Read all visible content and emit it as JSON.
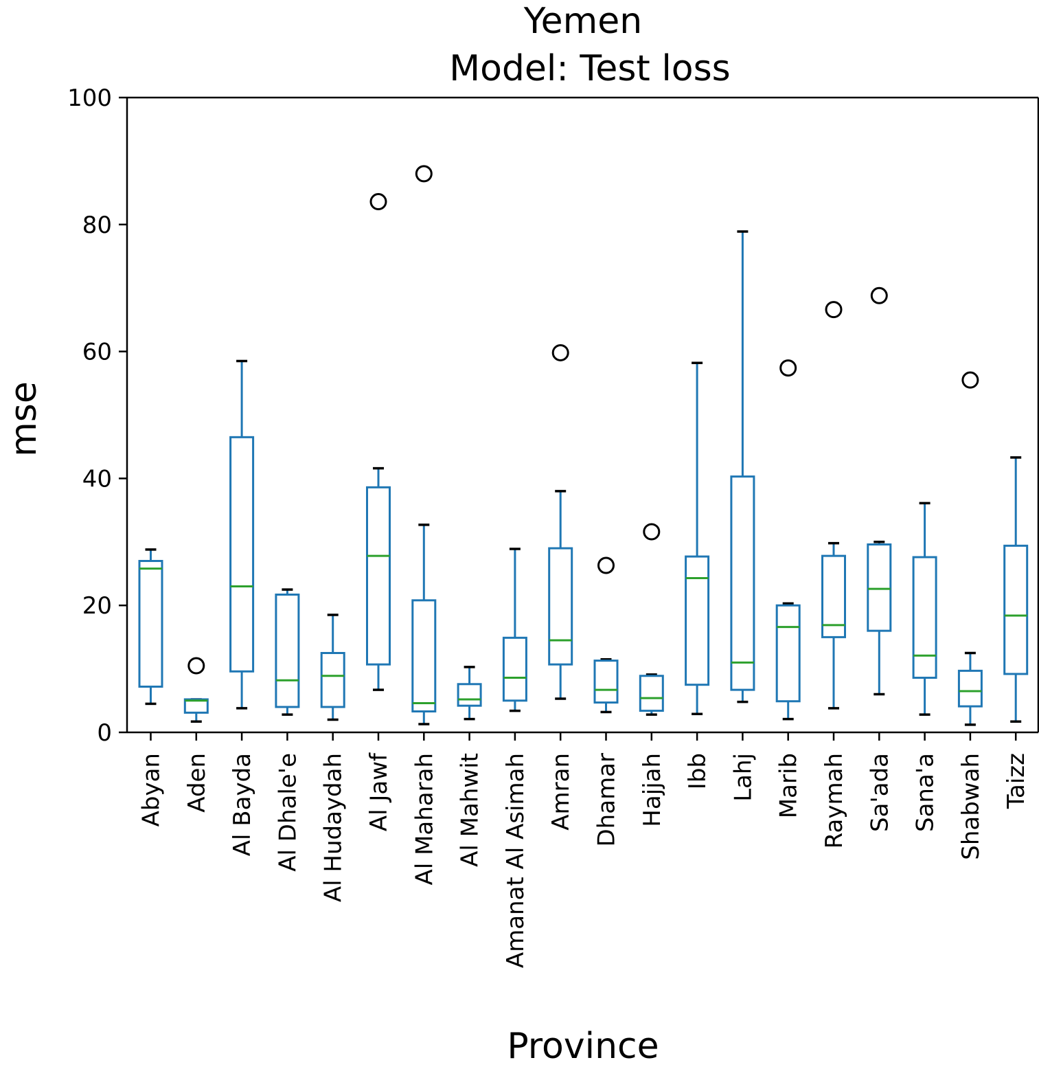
{
  "chart_data": {
    "type": "box",
    "title": "Yemen",
    "subtitle": "Model: Test loss",
    "xlabel": "Province",
    "ylabel": "mse",
    "ylim": [
      0,
      100
    ],
    "yticks": [
      0,
      20,
      40,
      60,
      80,
      100
    ],
    "grid": false,
    "colors": {
      "box": "#1f77b4",
      "median": "#2ca02c",
      "cap": "#000000",
      "outlier": "#000000"
    },
    "categories": [
      "Abyan",
      "Aden",
      "Al Bayda",
      "Al Dhale'e",
      "Al Hudaydah",
      "Al Jawf",
      "Al Maharah",
      "Al Mahwit",
      "Amanat Al Asimah",
      "Amran",
      "Dhamar",
      "Hajjah",
      "Ibb",
      "Lahj",
      "Marib",
      "Raymah",
      "Sa'ada",
      "Sana'a",
      "Shabwah",
      "Taizz"
    ],
    "boxes": [
      {
        "whisker_low": 4.5,
        "q1": 7.2,
        "median": 25.8,
        "q3": 27.0,
        "whisker_high": 28.8,
        "outliers": []
      },
      {
        "whisker_low": 1.7,
        "q1": 3.1,
        "median": 5.0,
        "q3": 5.2,
        "whisker_high": 5.2,
        "outliers": [
          10.5
        ]
      },
      {
        "whisker_low": 3.8,
        "q1": 9.6,
        "median": 23.0,
        "q3": 46.5,
        "whisker_high": 58.5,
        "outliers": []
      },
      {
        "whisker_low": 2.8,
        "q1": 4.0,
        "median": 8.2,
        "q3": 21.7,
        "whisker_high": 22.5,
        "outliers": []
      },
      {
        "whisker_low": 2.0,
        "q1": 4.0,
        "median": 8.9,
        "q3": 12.5,
        "whisker_high": 18.5,
        "outliers": []
      },
      {
        "whisker_low": 6.7,
        "q1": 10.7,
        "median": 27.8,
        "q3": 38.6,
        "whisker_high": 41.6,
        "outliers": [
          83.6
        ]
      },
      {
        "whisker_low": 1.3,
        "q1": 3.3,
        "median": 4.6,
        "q3": 20.8,
        "whisker_high": 32.7,
        "outliers": [
          88.0
        ]
      },
      {
        "whisker_low": 2.1,
        "q1": 4.2,
        "median": 5.2,
        "q3": 7.6,
        "whisker_high": 10.3,
        "outliers": []
      },
      {
        "whisker_low": 3.4,
        "q1": 5.0,
        "median": 8.6,
        "q3": 14.9,
        "whisker_high": 28.9,
        "outliers": []
      },
      {
        "whisker_low": 5.3,
        "q1": 10.7,
        "median": 14.5,
        "q3": 29.0,
        "whisker_high": 38.0,
        "outliers": [
          59.8
        ]
      },
      {
        "whisker_low": 3.2,
        "q1": 4.7,
        "median": 6.7,
        "q3": 11.3,
        "whisker_high": 11.5,
        "outliers": [
          26.3
        ]
      },
      {
        "whisker_low": 2.8,
        "q1": 3.4,
        "median": 5.4,
        "q3": 8.9,
        "whisker_high": 9.1,
        "outliers": [
          31.6
        ]
      },
      {
        "whisker_low": 2.9,
        "q1": 7.5,
        "median": 24.3,
        "q3": 27.7,
        "whisker_high": 58.2,
        "outliers": []
      },
      {
        "whisker_low": 4.8,
        "q1": 6.7,
        "median": 11.0,
        "q3": 40.3,
        "whisker_high": 78.9,
        "outliers": []
      },
      {
        "whisker_low": 2.1,
        "q1": 4.9,
        "median": 16.6,
        "q3": 20.0,
        "whisker_high": 20.3,
        "outliers": [
          57.4
        ]
      },
      {
        "whisker_low": 3.8,
        "q1": 15.0,
        "median": 16.9,
        "q3": 27.8,
        "whisker_high": 29.8,
        "outliers": [
          66.6
        ]
      },
      {
        "whisker_low": 6.0,
        "q1": 16.0,
        "median": 22.6,
        "q3": 29.6,
        "whisker_high": 30.0,
        "outliers": [
          68.8
        ]
      },
      {
        "whisker_low": 2.8,
        "q1": 8.6,
        "median": 12.1,
        "q3": 27.6,
        "whisker_high": 36.1,
        "outliers": []
      },
      {
        "whisker_low": 1.2,
        "q1": 4.1,
        "median": 6.5,
        "q3": 9.7,
        "whisker_high": 12.5,
        "outliers": [
          55.5
        ]
      },
      {
        "whisker_low": 1.7,
        "q1": 9.2,
        "median": 18.4,
        "q3": 29.4,
        "whisker_high": 43.3,
        "outliers": []
      }
    ]
  }
}
